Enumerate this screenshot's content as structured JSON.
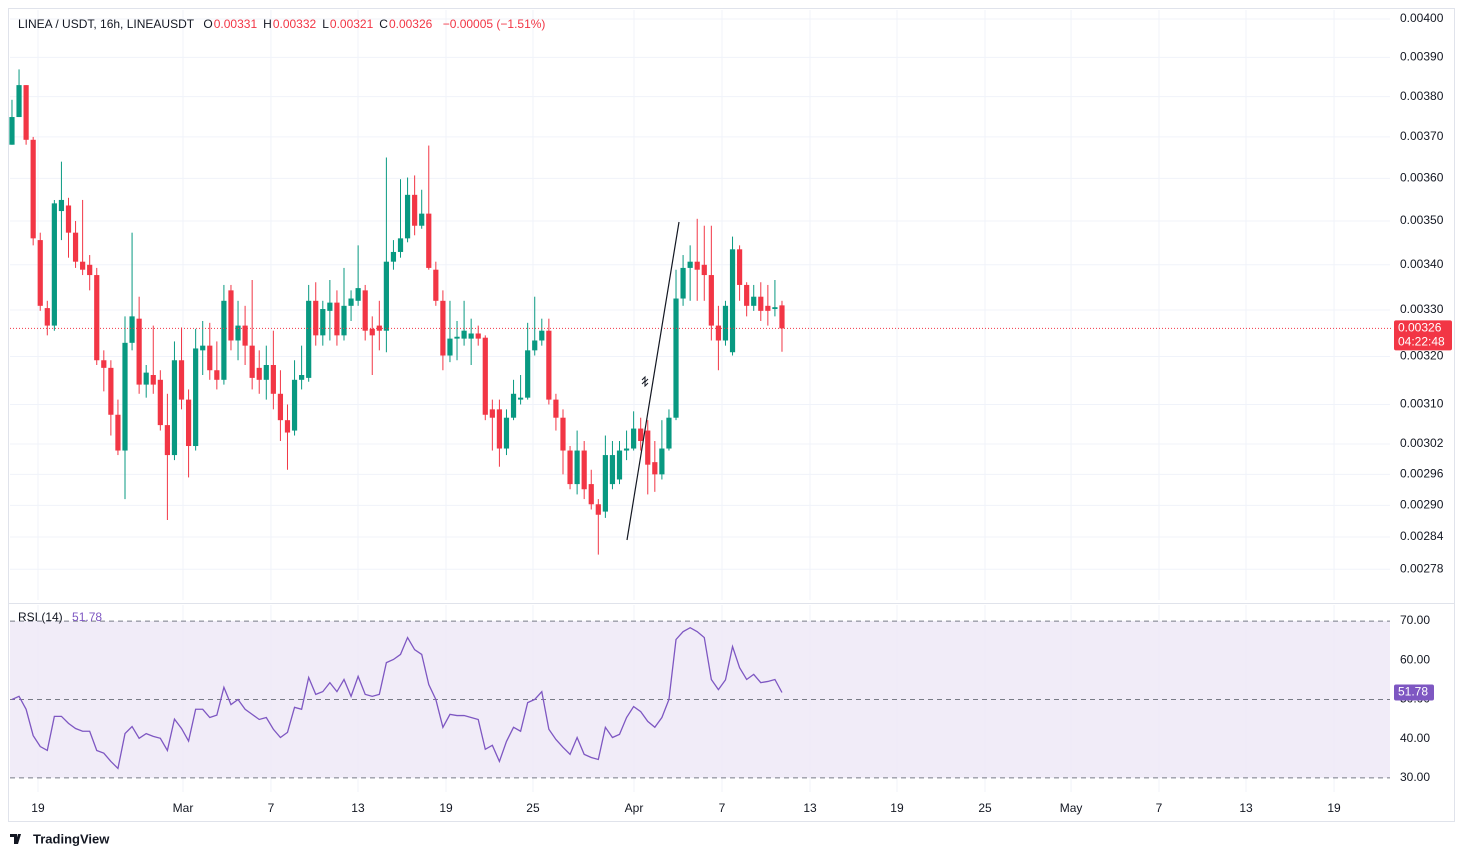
{
  "chart_data": [
    {
      "type": "candlestick",
      "title": "LINEA / USDT, 16h, LINEAUSDT",
      "ohlc": [
        {
          "label": "O",
          "value": "0.00331"
        },
        {
          "label": "H",
          "value": "0.00332"
        },
        {
          "label": "L",
          "value": "0.00321"
        },
        {
          "label": "C",
          "value": "0.00326"
        }
      ],
      "change": "−0.00005 (−1.51%)",
      "up_color": "#089981",
      "down_color": "#f23645",
      "log": true,
      "grid": true,
      "ylim": [
        0.002724,
        0.004024
      ],
      "yticks": [
        {
          "value": 0.004,
          "label": "0.00400"
        },
        {
          "value": 0.0039,
          "label": "0.00390"
        },
        {
          "value": 0.0038,
          "label": "0.00380"
        },
        {
          "value": 0.0037,
          "label": "0.00370"
        },
        {
          "value": 0.0036,
          "label": "0.00360"
        },
        {
          "value": 0.0035,
          "label": "0.00350"
        },
        {
          "value": 0.0034,
          "label": "0.00340"
        },
        {
          "value": 0.0033,
          "label": "0.00330"
        },
        {
          "value": 0.0032,
          "label": "0.00320"
        },
        {
          "value": 0.0031,
          "label": "0.00310"
        },
        0.00302,
        0.00296,
        {
          "value": 0.0029,
          "label": "0.00290"
        },
        0.00284,
        0.00278
      ],
      "xlim": [
        -0.28,
        195.07
      ],
      "xticks": [
        {
          "value": 3.68,
          "label": "19"
        },
        {
          "value": 24.21,
          "label": "Mar"
        },
        {
          "value": 36.66,
          "label": "7"
        },
        {
          "value": 48.98,
          "label": "13"
        },
        {
          "value": 61.44,
          "label": "19"
        },
        {
          "value": 73.75,
          "label": "25"
        },
        {
          "value": 88.05,
          "label": "Apr"
        },
        {
          "value": 100.51,
          "label": "7"
        },
        {
          "value": 112.97,
          "label": "13"
        },
        {
          "value": 125.28,
          "label": "19"
        },
        {
          "value": 137.74,
          "label": "25"
        },
        {
          "value": 149.92,
          "label": "May"
        },
        {
          "value": 162.37,
          "label": "7"
        },
        {
          "value": 174.69,
          "label": "13"
        },
        {
          "value": 187.15,
          "label": "19"
        }
      ],
      "last_price": {
        "value": 0.00326,
        "label": "0.00326"
      },
      "countdown": "04:22:48",
      "open": [
        0.003681,
        0.003749,
        0.003829,
        0.003693,
        0.003456,
        0.003304,
        0.003266,
        0.003523,
        0.003536,
        0.003473,
        0.003407,
        0.0034,
        0.003377,
        0.003192,
        0.003176,
        0.003079,
        0.003007,
        0.003229,
        0.003281,
        0.003141,
        0.003161,
        0.003151,
        0.003058,
        0.002998,
        0.003192,
        0.00311,
        0.003016,
        0.003213,
        0.003223,
        0.003171,
        0.003151,
        0.003343,
        0.003234,
        0.003266,
        0.003223,
        0.003176,
        0.003151,
        0.003182,
        0.003122,
        0.003068,
        0.003047,
        0.003151,
        0.003155,
        0.00332,
        0.003245,
        0.003298,
        0.003316,
        0.003245,
        0.003309,
        0.00332,
        0.003343,
        0.003259,
        0.003266,
        0.003255,
        0.003407,
        0.003429,
        0.00346,
        0.003561,
        0.003489,
        0.003517,
        0.003389,
        0.00332,
        0.003202,
        0.003238,
        0.003238,
        0.003238,
        0.003249,
        0.00324,
        0.00309,
        0.00309,
        0.003011,
        0.003073,
        0.00311,
        0.003114,
        0.003213,
        0.003234,
        0.003255,
        0.00311,
        0.003073,
        0.003007,
        0.002941,
        0.003007,
        0.002941,
        0.002902,
        0.002888,
        0.002941,
        0.00295,
        0.003007,
        0.003011,
        0.003051,
        0.003047,
        0.002984,
        0.00296,
        0.003011,
        0.003073,
        0.003325,
        0.003393,
        0.003407,
        0.0034,
        0.003377,
        0.003266,
        0.003234,
        0.003209,
        0.003435,
        0.003355,
        0.003309,
        0.003329,
        0.003309,
        0.003302,
        0.00331
      ],
      "high": [
        0.003792,
        0.003869,
        0.003829,
        0.0037,
        0.003473,
        0.00332,
        0.003549,
        0.00364,
        0.003554,
        0.0035,
        0.003549,
        0.003422,
        0.003393,
        0.003213,
        0.003192,
        0.00311,
        0.003286,
        0.003473,
        0.003329,
        0.003182,
        0.003266,
        0.003171,
        0.003122,
        0.003232,
        0.003262,
        0.003131,
        0.003259,
        0.003276,
        0.003272,
        0.003232,
        0.003355,
        0.003355,
        0.00332,
        0.003309,
        0.003366,
        0.003213,
        0.003223,
        0.003255,
        0.003171,
        0.0031,
        0.003192,
        0.003223,
        0.003355,
        0.003361,
        0.00332,
        0.003366,
        0.003343,
        0.003393,
        0.003343,
        0.003444,
        0.003355,
        0.003286,
        0.00332,
        0.00365,
        0.003456,
        0.003598,
        0.003602,
        0.003607,
        0.003573,
        0.003679,
        0.003407,
        0.003343,
        0.00332,
        0.003276,
        0.00332,
        0.003281,
        0.003266,
        0.003245,
        0.00311,
        0.00311,
        0.00309,
        0.003151,
        0.003161,
        0.003272,
        0.003329,
        0.003281,
        0.003281,
        0.003122,
        0.00309,
        0.003016,
        0.003047,
        0.003026,
        0.002969,
        0.002912,
        0.003037,
        0.003026,
        0.003026,
        0.003047,
        0.003086,
        0.003073,
        0.003068,
        0.003026,
        0.003068,
        0.00309,
        0.003389,
        0.003422,
        0.003444,
        0.003505,
        0.003489,
        0.003489,
        0.003309,
        0.00332,
        0.003464,
        0.003444,
        0.003361,
        0.003355,
        0.003361,
        0.003355,
        0.003366,
        0.00332
      ],
      "low": [
        0.003681,
        0.003749,
        0.003681,
        0.003444,
        0.003298,
        0.003245,
        0.003255,
        0.003456,
        0.003416,
        0.003393,
        0.003377,
        0.003343,
        0.003182,
        0.003127,
        0.003037,
        0.002998,
        0.002912,
        0.003213,
        0.003122,
        0.003114,
        0.003122,
        0.003047,
        0.002872,
        0.002988,
        0.00309,
        0.002954,
        0.003007,
        0.003161,
        0.003151,
        0.003131,
        0.003141,
        0.003213,
        0.003192,
        0.003182,
        0.003131,
        0.003122,
        0.00311,
        0.00309,
        0.003026,
        0.002969,
        0.003037,
        0.003131,
        0.003147,
        0.003223,
        0.003223,
        0.003234,
        0.003223,
        0.003234,
        0.003276,
        0.003309,
        0.003234,
        0.003161,
        0.003213,
        0.003209,
        0.003389,
        0.003416,
        0.003451,
        0.003467,
        0.003482,
        0.003389,
        0.003309,
        0.003171,
        0.003188,
        0.003192,
        0.003223,
        0.003182,
        0.003223,
        0.003068,
        0.003007,
        0.002975,
        0.002998,
        0.003068,
        0.0031,
        0.00311,
        0.003202,
        0.003223,
        0.0031,
        0.003047,
        0.00296,
        0.002931,
        0.002921,
        0.002912,
        0.002892,
        0.002807,
        0.002876,
        0.002931,
        0.002941,
        0.002988,
        0.003007,
        0.003007,
        0.002921,
        0.002926,
        0.00295,
        0.003007,
        0.003068,
        0.003309,
        0.00332,
        0.00332,
        0.00332,
        0.003234,
        0.003171,
        0.003223,
        0.003202,
        0.00332,
        0.003286,
        0.003298,
        0.003276,
        0.003266,
        0.003286,
        0.00321
      ],
      "close": [
        0.003749,
        0.003829,
        0.003693,
        0.00346,
        0.003309,
        0.003266,
        0.003541,
        0.003549,
        0.003473,
        0.003407,
        0.003389,
        0.003377,
        0.003192,
        0.003176,
        0.003079,
        0.003007,
        0.003229,
        0.003286,
        0.003141,
        0.003166,
        0.003141,
        0.003058,
        0.002998,
        0.003192,
        0.00311,
        0.003016,
        0.003217,
        0.003223,
        0.003171,
        0.003151,
        0.00332,
        0.003234,
        0.003266,
        0.003223,
        0.003155,
        0.003151,
        0.003182,
        0.003122,
        0.003068,
        0.003043,
        0.003151,
        0.003161,
        0.00332,
        0.003245,
        0.003302,
        0.003316,
        0.003245,
        0.003309,
        0.003325,
        0.003348,
        0.003255,
        0.003245,
        0.003255,
        0.003407,
        0.003429,
        0.00346,
        0.003561,
        0.003489,
        0.003517,
        0.003393,
        0.00332,
        0.003202,
        0.003238,
        0.003242,
        0.003255,
        0.003249,
        0.003238,
        0.003079,
        0.003073,
        0.003011,
        0.003073,
        0.003122,
        0.003114,
        0.003213,
        0.003234,
        0.003255,
        0.00311,
        0.003073,
        0.003007,
        0.002941,
        0.003007,
        0.002931,
        0.002902,
        0.002882,
        0.002998,
        0.002998,
        0.003007,
        0.003011,
        0.003051,
        0.003026,
        0.002979,
        0.00296,
        0.003011,
        0.003073,
        0.003325,
        0.003393,
        0.003407,
        0.003389,
        0.003377,
        0.003266,
        0.003234,
        0.003309,
        0.003435,
        0.003355,
        0.003309,
        0.003329,
        0.003298,
        0.003298,
        0.003306,
        0.00326
      ]
    },
    {
      "type": "line",
      "title": "RSI (14)",
      "color": "#7e57c2",
      "band_color": "#ede7f6",
      "ylim": [
        26.4,
        74.1
      ],
      "yticks": [
        {
          "value": 70,
          "label": "70.00"
        },
        {
          "value": 60,
          "label": "60.00"
        },
        {
          "value": 50,
          "label": "50.00"
        },
        {
          "value": 40,
          "label": "40.00"
        },
        {
          "value": 30,
          "label": "30.00"
        }
      ],
      "bands": [
        30,
        50,
        70
      ],
      "values": [
        50.0,
        50.8,
        47.5,
        40.8,
        38.0,
        37.0,
        45.7,
        45.7,
        43.9,
        42.6,
        41.9,
        41.9,
        37.0,
        36.3,
        34.2,
        32.4,
        41.3,
        43.1,
        40.1,
        41.3,
        40.6,
        40.1,
        37.0,
        45.0,
        42.6,
        39.4,
        47.5,
        47.5,
        45.4,
        46.0,
        53.1,
        48.7,
        50.0,
        47.5,
        46.2,
        44.9,
        45.4,
        42.4,
        40.3,
        41.6,
        48.0,
        47.5,
        55.6,
        51.3,
        52.0,
        54.3,
        52.0,
        55.1,
        50.8,
        55.9,
        51.3,
        50.8,
        51.3,
        59.4,
        60.2,
        61.5,
        65.8,
        62.7,
        61.5,
        53.8,
        50.0,
        42.9,
        46.2,
        45.9,
        45.9,
        45.4,
        44.9,
        37.3,
        38.3,
        34.2,
        39.3,
        42.9,
        41.9,
        49.2,
        50.0,
        52.0,
        42.4,
        39.8,
        37.8,
        36.0,
        40.3,
        36.0,
        35.2,
        34.7,
        42.9,
        40.3,
        41.1,
        45.4,
        48.2,
        46.9,
        44.4,
        42.9,
        45.4,
        50.0,
        65.3,
        67.3,
        68.3,
        67.3,
        65.8,
        55.1,
        52.5,
        55.0,
        63.5,
        58.1,
        55.1,
        56.4,
        54.3,
        54.6,
        55.1,
        51.78
      ]
    }
  ],
  "footer": {
    "brand": "TradingView"
  }
}
